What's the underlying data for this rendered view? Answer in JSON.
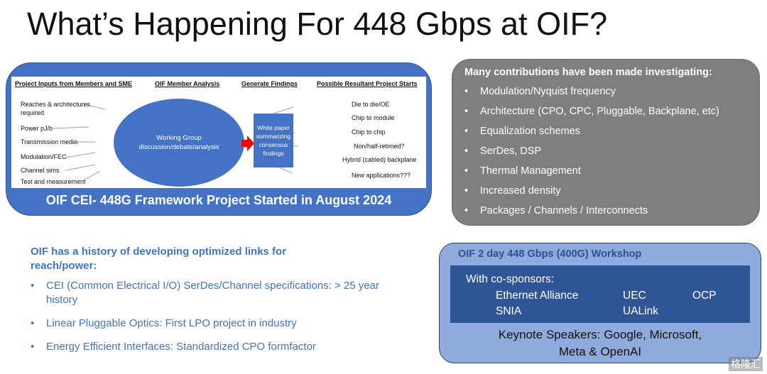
{
  "title": "What’s Happening For 448 Gbps at OIF?",
  "diagram": {
    "headers": [
      "Project Inputs from Members and SME",
      "OIF Member Analysis",
      "Generate Findings",
      "Possible Resultant Project Starts"
    ],
    "inputs": [
      "Reaches  & architectures",
      "required",
      "Power pJ/b",
      "Transmission media",
      "Modulation/FEC",
      "Channel sims",
      "Test and measurement"
    ],
    "ellipse": [
      "Working Group",
      "discussion/debate/analysis"
    ],
    "findings": [
      "White paper",
      "summarizing",
      "consensus",
      "findings"
    ],
    "outputs": [
      "Die to die/OE",
      "Chip to module",
      "Chip to chip",
      "Non/half-retimed?",
      "Hybrid (cabled) backplane",
      "New applications???"
    ],
    "footer": "OIF CEI- 448G Framework Project Started in August 2024",
    "colors": {
      "box": "#4472c4",
      "arrow": "#ff0000"
    }
  },
  "contributions": {
    "heading": "Many contributions have been made investigating:",
    "items": [
      "Modulation/Nyquist frequency",
      "Architecture (CPO, CPC, Pluggable, Backplane, etc)",
      "Equalization schemes",
      "SerDes, DSP",
      "Thermal Management",
      "Increased density",
      "Packages / Channels / Interconnects"
    ]
  },
  "history": {
    "heading": "OIF has a history of developing optimized links for reach/power:",
    "items": [
      "CEI (Common Electrical I/O) SerDes/Channel specifications: > 25 year history",
      "Linear Pluggable Optics: First LPO project in industry",
      "Energy Efficient Interfaces: Standardized CPO formfactor"
    ]
  },
  "workshop": {
    "heading": "OIF 2 day 448 Gbps (400G) Workshop",
    "cosponsors_label": "With co-sponsors:",
    "sponsors": [
      "Ethernet Alliance",
      "UEC",
      "OCP",
      "SNIA",
      "UALink"
    ],
    "keynote": [
      "Keynote Speakers: Google, Microsoft,",
      "Meta & OpenAI"
    ]
  },
  "watermark": "格隆汇"
}
